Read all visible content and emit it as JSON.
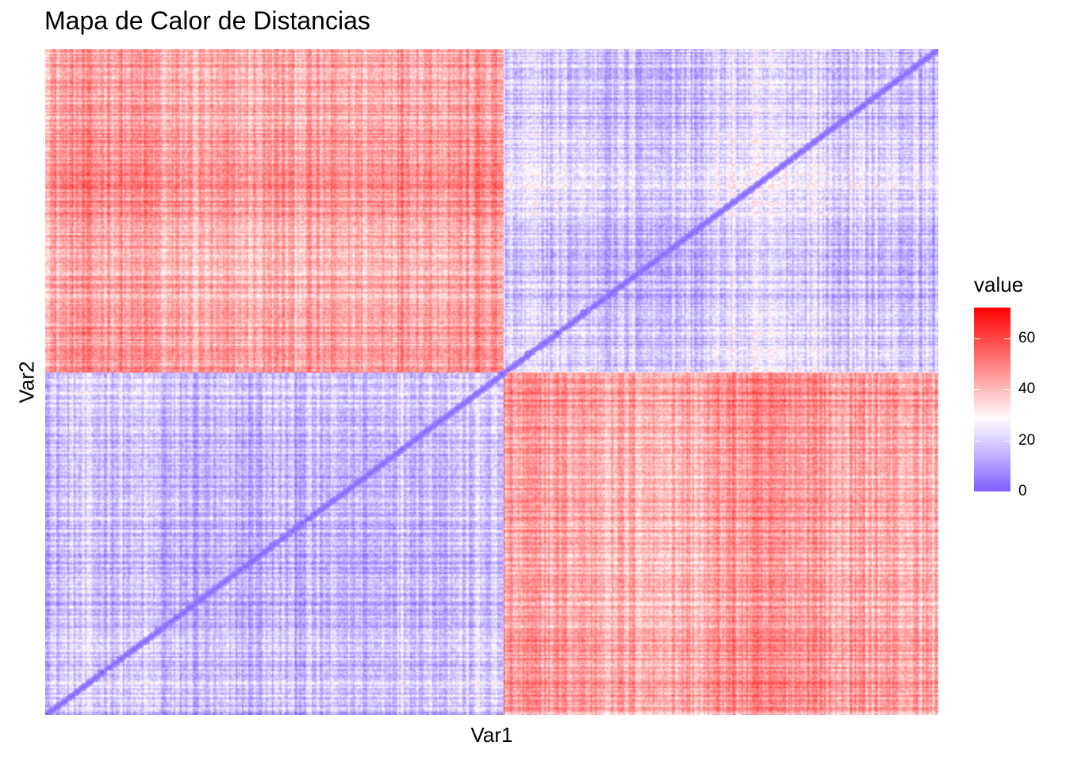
{
  "chart_data": {
    "type": "heatmap",
    "title": "Mapa de Calor de Distancias",
    "xlabel": "Var1",
    "ylabel": "Var2",
    "legend": {
      "title": "value",
      "placement": "right",
      "ticks": [
        0,
        20,
        40,
        60
      ],
      "range": [
        0,
        72
      ],
      "low_color": "#7f5fff",
      "mid_color": "#ffffff",
      "high_color": "#ff0000",
      "midpoint": 28
    },
    "n": 200,
    "block_boundaries_fraction": [
      0,
      0.51,
      1
    ],
    "block_means": {
      "within_cluster": 18,
      "between_cluster": 44
    },
    "diagonal_value": 0,
    "ticks_shown": false,
    "grid": false
  }
}
